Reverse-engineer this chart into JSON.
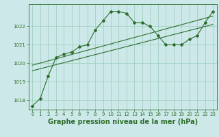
{
  "background_color": "#cce8e8",
  "grid_color": "#99ccbb",
  "line_color": "#2d6e2d",
  "xlabel": "Graphe pression niveau de la mer (hPa)",
  "xlabel_fontsize": 7,
  "xlim": [
    -0.5,
    23.5
  ],
  "ylim": [
    1017.5,
    1023.2
  ],
  "yticks": [
    1018,
    1019,
    1020,
    1021,
    1022
  ],
  "xticks": [
    0,
    1,
    2,
    3,
    4,
    5,
    6,
    7,
    8,
    9,
    10,
    11,
    12,
    13,
    14,
    15,
    16,
    17,
    18,
    19,
    20,
    21,
    22,
    23
  ],
  "series1_x": [
    0,
    1,
    2,
    3,
    4,
    5,
    6,
    7,
    8,
    9,
    10,
    11,
    12,
    13,
    14,
    15,
    16,
    17,
    18,
    19,
    20,
    21,
    22,
    23
  ],
  "series1_y": [
    1017.7,
    1018.1,
    1019.3,
    1020.3,
    1020.5,
    1020.6,
    1020.9,
    1021.0,
    1021.8,
    1022.3,
    1022.8,
    1022.8,
    1022.7,
    1022.2,
    1022.2,
    1022.0,
    1021.5,
    1021.0,
    1021.0,
    1021.0,
    1021.3,
    1021.5,
    1022.2,
    1022.8
  ],
  "trend1_x": [
    0,
    23
  ],
  "trend1_y": [
    1019.6,
    1022.1
  ],
  "trend2_x": [
    0,
    23
  ],
  "trend2_y": [
    1019.9,
    1022.55
  ]
}
